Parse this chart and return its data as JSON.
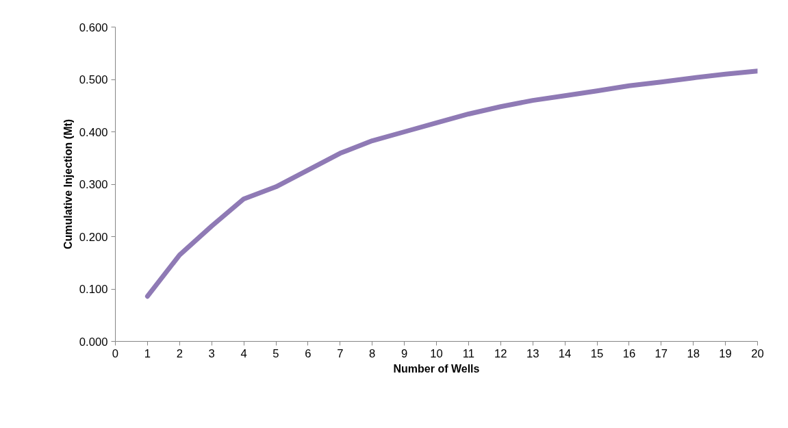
{
  "chart_data": {
    "type": "line",
    "xlabel": "Number of Wells",
    "ylabel": "Cumulative Injection (Mt)",
    "x": [
      1,
      2,
      3,
      4,
      5,
      6,
      7,
      8,
      9,
      10,
      11,
      12,
      13,
      14,
      15,
      16,
      17,
      18,
      19,
      20
    ],
    "series": [
      {
        "color": "#8f7ab5",
        "values": [
          0.086,
          0.165,
          0.22,
          0.272,
          0.295,
          0.327,
          0.359,
          0.383,
          0.4,
          0.417,
          0.434,
          0.448,
          0.46,
          0.469,
          0.478,
          0.488,
          0.495,
          0.503,
          0.51,
          0.516
        ]
      }
    ],
    "xlim": [
      0,
      20
    ],
    "xticks": [
      0,
      1,
      2,
      3,
      4,
      5,
      6,
      7,
      8,
      9,
      10,
      11,
      12,
      13,
      14,
      15,
      16,
      17,
      18,
      19,
      20
    ],
    "ylim": [
      0,
      0.6
    ],
    "yticks": [
      {
        "value": 0,
        "label": "0.000"
      },
      {
        "value": 0.1,
        "label": "0.100"
      },
      {
        "value": 0.2,
        "label": "0.200"
      },
      {
        "value": 0.3,
        "label": "0.300"
      },
      {
        "value": 0.4,
        "label": "0.400"
      },
      {
        "value": 0.5,
        "label": "0.500"
      },
      {
        "value": 0.6,
        "label": "0.600"
      }
    ],
    "grid": false,
    "marker": "none",
    "line_style": "solid"
  }
}
